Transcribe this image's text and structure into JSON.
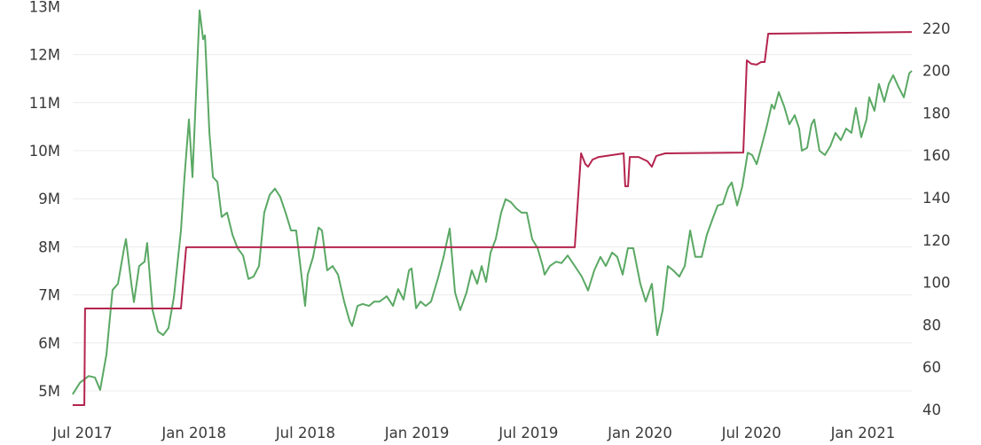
{
  "chart_data": {
    "type": "line",
    "title": "",
    "xlabel": "",
    "ylabel_left": "",
    "ylabel_right": "",
    "x_unit": "months since Jul 2017",
    "x_ticks": [
      {
        "m": 0,
        "label": "Jul 2017"
      },
      {
        "m": 6,
        "label": "Jan 2018"
      },
      {
        "m": 12,
        "label": "Jul 2018"
      },
      {
        "m": 18,
        "label": "Jan 2019"
      },
      {
        "m": 24,
        "label": "Jul 2019"
      },
      {
        "m": 30,
        "label": "Jan 2020"
      },
      {
        "m": 36,
        "label": "Jul 2020"
      },
      {
        "m": 42,
        "label": "Jan 2021"
      }
    ],
    "y_left": {
      "ticks": [
        5,
        6,
        7,
        8,
        9,
        10,
        11,
        12,
        13
      ],
      "labels": [
        "5M",
        "6M",
        "7M",
        "8M",
        "9M",
        "10M",
        "11M",
        "12M",
        "13M"
      ],
      "unit": "M",
      "grid": true
    },
    "y_right": {
      "ticks": [
        40,
        60,
        80,
        100,
        120,
        140,
        160,
        180,
        200,
        220
      ],
      "labels": [
        "40",
        "60",
        "80",
        "100",
        "120",
        "140",
        "160",
        "180",
        "200",
        "220"
      ]
    },
    "series": [
      {
        "name": "green-series",
        "axis": "left",
        "color": "#5aa864",
        "points": [
          [
            -0.53,
            4.93
          ],
          [
            -0.14,
            5.17
          ],
          [
            0.33,
            5.31
          ],
          [
            0.67,
            5.28
          ],
          [
            0.95,
            5.02
          ],
          [
            1.29,
            5.76
          ],
          [
            1.62,
            7.1
          ],
          [
            1.91,
            7.23
          ],
          [
            2.24,
            7.97
          ],
          [
            2.34,
            8.16
          ],
          [
            2.63,
            7.23
          ],
          [
            2.77,
            6.85
          ],
          [
            3.05,
            7.6
          ],
          [
            3.34,
            7.69
          ],
          [
            3.48,
            8.08
          ],
          [
            3.77,
            6.68
          ],
          [
            4.06,
            6.24
          ],
          [
            4.34,
            6.16
          ],
          [
            4.63,
            6.31
          ],
          [
            4.92,
            6.96
          ],
          [
            5.3,
            8.34
          ],
          [
            5.49,
            9.45
          ],
          [
            5.73,
            10.65
          ],
          [
            5.92,
            9.45
          ],
          [
            6.16,
            11.66
          ],
          [
            6.3,
            12.92
          ],
          [
            6.49,
            12.32
          ],
          [
            6.59,
            12.4
          ],
          [
            6.83,
            10.37
          ],
          [
            7.02,
            9.45
          ],
          [
            7.26,
            9.35
          ],
          [
            7.49,
            8.62
          ],
          [
            7.78,
            8.71
          ],
          [
            8.07,
            8.25
          ],
          [
            8.35,
            7.97
          ],
          [
            8.64,
            7.82
          ],
          [
            8.93,
            7.33
          ],
          [
            9.21,
            7.38
          ],
          [
            9.5,
            7.6
          ],
          [
            9.78,
            8.71
          ],
          [
            10.07,
            9.08
          ],
          [
            10.36,
            9.21
          ],
          [
            10.64,
            9.04
          ],
          [
            10.93,
            8.71
          ],
          [
            11.22,
            8.34
          ],
          [
            11.5,
            8.34
          ],
          [
            11.84,
            7.23
          ],
          [
            11.98,
            6.77
          ],
          [
            12.12,
            7.42
          ],
          [
            12.41,
            7.79
          ],
          [
            12.7,
            8.4
          ],
          [
            12.89,
            8.34
          ],
          [
            13.17,
            7.51
          ],
          [
            13.46,
            7.6
          ],
          [
            13.75,
            7.42
          ],
          [
            14.08,
            6.86
          ],
          [
            14.37,
            6.46
          ],
          [
            14.51,
            6.35
          ],
          [
            14.8,
            6.77
          ],
          [
            15.08,
            6.81
          ],
          [
            15.42,
            6.77
          ],
          [
            15.7,
            6.86
          ],
          [
            15.99,
            6.86
          ],
          [
            16.37,
            6.97
          ],
          [
            16.71,
            6.77
          ],
          [
            16.99,
            7.12
          ],
          [
            17.28,
            6.9
          ],
          [
            17.57,
            7.51
          ],
          [
            17.71,
            7.55
          ],
          [
            17.95,
            6.72
          ],
          [
            18.19,
            6.86
          ],
          [
            18.47,
            6.77
          ],
          [
            18.76,
            6.86
          ],
          [
            19.14,
            7.36
          ],
          [
            19.43,
            7.79
          ],
          [
            19.76,
            8.38
          ],
          [
            20.05,
            7.05
          ],
          [
            20.33,
            6.68
          ],
          [
            20.67,
            7.05
          ],
          [
            20.95,
            7.51
          ],
          [
            21.24,
            7.23
          ],
          [
            21.48,
            7.6
          ],
          [
            21.72,
            7.27
          ],
          [
            21.96,
            7.88
          ],
          [
            22.24,
            8.16
          ],
          [
            22.53,
            8.71
          ],
          [
            22.77,
            8.99
          ],
          [
            23.05,
            8.93
          ],
          [
            23.34,
            8.8
          ],
          [
            23.63,
            8.71
          ],
          [
            23.91,
            8.71
          ],
          [
            24.2,
            8.16
          ],
          [
            24.49,
            7.97
          ],
          [
            24.77,
            7.6
          ],
          [
            24.87,
            7.42
          ],
          [
            25.15,
            7.6
          ],
          [
            25.49,
            7.69
          ],
          [
            25.78,
            7.66
          ],
          [
            26.11,
            7.82
          ],
          [
            26.49,
            7.6
          ],
          [
            26.87,
            7.38
          ],
          [
            27.21,
            7.09
          ],
          [
            27.54,
            7.51
          ],
          [
            27.87,
            7.79
          ],
          [
            28.16,
            7.6
          ],
          [
            28.5,
            7.88
          ],
          [
            28.78,
            7.79
          ],
          [
            29.07,
            7.42
          ],
          [
            29.35,
            7.97
          ],
          [
            29.64,
            7.97
          ],
          [
            30.02,
            7.23
          ],
          [
            30.31,
            6.86
          ],
          [
            30.64,
            7.23
          ],
          [
            30.93,
            6.16
          ],
          [
            31.22,
            6.68
          ],
          [
            31.5,
            7.6
          ],
          [
            31.79,
            7.51
          ],
          [
            32.12,
            7.38
          ],
          [
            32.41,
            7.6
          ],
          [
            32.7,
            8.34
          ],
          [
            32.98,
            7.79
          ],
          [
            33.32,
            7.79
          ],
          [
            33.6,
            8.25
          ],
          [
            33.89,
            8.56
          ],
          [
            34.18,
            8.86
          ],
          [
            34.46,
            8.89
          ],
          [
            34.75,
            9.23
          ],
          [
            34.94,
            9.34
          ],
          [
            35.23,
            8.86
          ],
          [
            35.51,
            9.26
          ],
          [
            35.8,
            9.96
          ],
          [
            36.04,
            9.91
          ],
          [
            36.28,
            9.72
          ],
          [
            36.56,
            10.11
          ],
          [
            36.85,
            10.55
          ],
          [
            37.09,
            10.96
          ],
          [
            37.23,
            10.87
          ],
          [
            37.47,
            11.22
          ],
          [
            37.76,
            10.92
          ],
          [
            38.04,
            10.55
          ],
          [
            38.33,
            10.74
          ],
          [
            38.57,
            10.46
          ],
          [
            38.71,
            10.0
          ],
          [
            39.0,
            10.06
          ],
          [
            39.23,
            10.55
          ],
          [
            39.38,
            10.65
          ],
          [
            39.66,
            10.0
          ],
          [
            39.95,
            9.91
          ],
          [
            40.24,
            10.09
          ],
          [
            40.52,
            10.37
          ],
          [
            40.81,
            10.22
          ],
          [
            41.1,
            10.46
          ],
          [
            41.38,
            10.37
          ],
          [
            41.62,
            10.89
          ],
          [
            41.91,
            10.28
          ],
          [
            42.19,
            10.65
          ],
          [
            42.34,
            11.11
          ],
          [
            42.62,
            10.83
          ],
          [
            42.86,
            11.39
          ],
          [
            43.15,
            11.02
          ],
          [
            43.39,
            11.39
          ],
          [
            43.63,
            11.57
          ],
          [
            43.91,
            11.33
          ],
          [
            44.2,
            11.11
          ],
          [
            44.49,
            11.61
          ],
          [
            44.63,
            11.66
          ]
        ]
      },
      {
        "name": "red-series",
        "axis": "right",
        "color": "#b4244e",
        "points": [
          [
            -0.53,
            42.1
          ],
          [
            0.1,
            42.1
          ],
          [
            0.14,
            87.7
          ],
          [
            5.3,
            87.7
          ],
          [
            5.58,
            116.6
          ],
          [
            26.49,
            116.6
          ],
          [
            26.83,
            160.9
          ],
          [
            27.06,
            155.9
          ],
          [
            27.21,
            154.6
          ],
          [
            27.45,
            158.0
          ],
          [
            27.78,
            159.2
          ],
          [
            29.12,
            160.9
          ],
          [
            29.21,
            145.4
          ],
          [
            29.36,
            145.4
          ],
          [
            29.45,
            159.2
          ],
          [
            29.93,
            159.2
          ],
          [
            30.4,
            157.2
          ],
          [
            30.64,
            154.6
          ],
          [
            30.88,
            159.7
          ],
          [
            31.36,
            160.9
          ],
          [
            35.56,
            161.3
          ],
          [
            35.75,
            204.8
          ],
          [
            35.99,
            203.2
          ],
          [
            36.28,
            202.8
          ],
          [
            36.52,
            204.0
          ],
          [
            36.71,
            204.0
          ],
          [
            36.9,
            217.4
          ],
          [
            44.63,
            218.2
          ]
        ]
      }
    ],
    "legend": "none"
  }
}
